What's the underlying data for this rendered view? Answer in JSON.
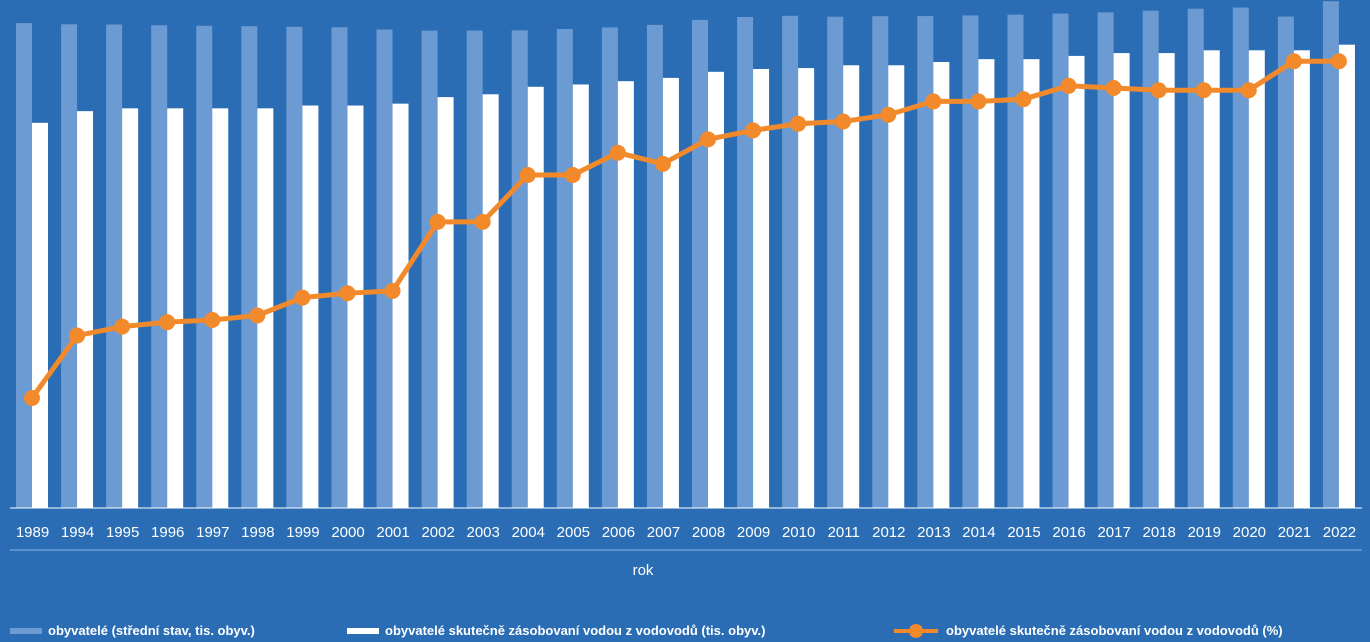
{
  "chart_data": {
    "type": "bar",
    "xlabel": "rok",
    "categories": [
      "1989",
      "1994",
      "1995",
      "1996",
      "1997",
      "1998",
      "1999",
      "2000",
      "2001",
      "2002",
      "2003",
      "2004",
      "2005",
      "2006",
      "2007",
      "2008",
      "2009",
      "2010",
      "2011",
      "2012",
      "2013",
      "2014",
      "2015",
      "2016",
      "2017",
      "2018",
      "2019",
      "2020",
      "2021",
      "2022"
    ],
    "grid": false,
    "legend_position": "bottom",
    "series": [
      {
        "name": "obyvatelé (střední stav, tis. obyv.)",
        "kind": "bar",
        "color": "#6b9bd2",
        "values": [
          10360,
          10336,
          10331,
          10315,
          10304,
          10295,
          10283,
          10273,
          10224,
          10201,
          10202,
          10207,
          10234,
          10269,
          10323,
          10430,
          10491,
          10517,
          10497,
          10509,
          10511,
          10525,
          10543,
          10565,
          10590,
          10626,
          10669,
          10694,
          10500,
          10828
        ]
      },
      {
        "name": "obyvatelé skutečně zásobovaní vodou z vodovodů (tis. obyv.)",
        "kind": "bar",
        "color": "#ffffff",
        "values": [
          8230,
          8480,
          8540,
          8540,
          8540,
          8540,
          8600,
          8600,
          8640,
          8780,
          8840,
          9000,
          9050,
          9120,
          9190,
          9320,
          9380,
          9400,
          9460,
          9460,
          9530,
          9590,
          9590,
          9660,
          9720,
          9720,
          9780,
          9780,
          9780,
          9900
        ]
      },
      {
        "name": "obyvatelé skutečně zásobovaní vodou z vodovodů (%)",
        "kind": "line",
        "color": "#f28a2c",
        "values": [
          79.4,
          82.2,
          82.6,
          82.8,
          82.9,
          83.1,
          83.9,
          84.1,
          84.2,
          87.3,
          87.3,
          89.4,
          89.4,
          90.4,
          89.9,
          91.0,
          91.4,
          91.7,
          91.8,
          92.1,
          92.7,
          92.7,
          92.8,
          93.4,
          93.3,
          93.2,
          93.2,
          93.2,
          94.5,
          94.5
        ]
      }
    ]
  }
}
